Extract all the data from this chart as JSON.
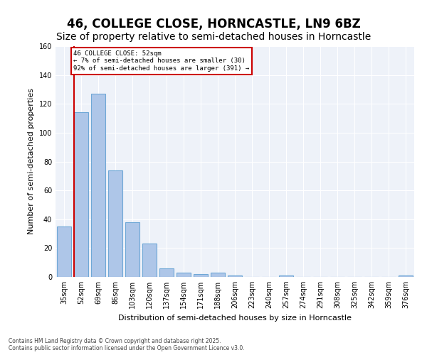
{
  "title_line1": "46, COLLEGE CLOSE, HORNCASTLE, LN9 6BZ",
  "title_line2": "Size of property relative to semi-detached houses in Horncastle",
  "xlabel": "Distribution of semi-detached houses by size in Horncastle",
  "ylabel": "Number of semi-detached properties",
  "categories": [
    "35sqm",
    "52sqm",
    "69sqm",
    "86sqm",
    "103sqm",
    "120sqm",
    "137sqm",
    "154sqm",
    "171sqm",
    "188sqm",
    "206sqm",
    "223sqm",
    "240sqm",
    "257sqm",
    "274sqm",
    "291sqm",
    "308sqm",
    "325sqm",
    "342sqm",
    "359sqm",
    "376sqm"
  ],
  "values": [
    35,
    114,
    127,
    74,
    38,
    23,
    6,
    3,
    2,
    3,
    1,
    0,
    0,
    1,
    0,
    0,
    0,
    0,
    0,
    0,
    1
  ],
  "highlight_index": 1,
  "bar_color": "#aec6e8",
  "bar_edge_color": "#6fa8d6",
  "highlight_line_color": "#cc0000",
  "annotation_box_color": "#cc0000",
  "annotation_text": "46 COLLEGE CLOSE: 52sqm\n← 7% of semi-detached houses are smaller (30)\n92% of semi-detached houses are larger (391) →",
  "ylim": [
    0,
    160
  ],
  "yticks": [
    0,
    20,
    40,
    60,
    80,
    100,
    120,
    140,
    160
  ],
  "background_color": "#eef2f9",
  "footer_text": "Contains HM Land Registry data © Crown copyright and database right 2025.\nContains public sector information licensed under the Open Government Licence v3.0.",
  "title_fontsize": 12,
  "subtitle_fontsize": 10,
  "axis_fontsize": 8,
  "tick_fontsize": 7
}
